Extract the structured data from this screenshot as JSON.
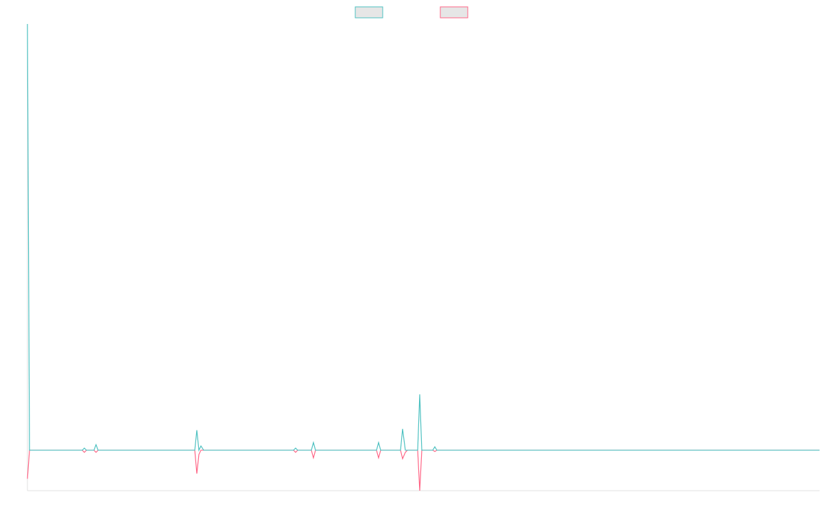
{
  "chart_data": {
    "type": "line",
    "x": [
      0,
      3,
      80,
      83,
      86,
      97,
      100,
      103,
      244,
      247,
      250,
      253,
      257,
      388,
      391,
      394,
      414,
      417,
      420,
      509,
      512,
      515,
      544,
      547,
      551,
      554,
      569,
      572,
      575,
      591,
      594,
      597,
      1155
    ],
    "series": [
      {
        "color": "#4bc0c0",
        "values": [
          10,
          0,
          0,
          0.05,
          0,
          0,
          0.13,
          0,
          0,
          0.47,
          0,
          0.1,
          0,
          0,
          0.05,
          0,
          0,
          0.18,
          0,
          0,
          0.18,
          0,
          0,
          0.5,
          0,
          0,
          0,
          1.31,
          0,
          0,
          0.08,
          0,
          0
        ]
      },
      {
        "color": "#ff6384",
        "values": [
          -0.67,
          0,
          0,
          -0.05,
          0,
          0,
          -0.05,
          0,
          0,
          -0.55,
          -0.1,
          0,
          0,
          0,
          -0.05,
          0,
          0,
          -0.18,
          0,
          0,
          -0.18,
          0,
          0,
          -0.2,
          -0.05,
          0,
          0,
          -0.95,
          0,
          0,
          -0.03,
          0,
          0
        ]
      }
    ],
    "xlim": [
      0,
      1155
    ],
    "ylim": [
      -0.95,
      10
    ],
    "legend": "top"
  }
}
